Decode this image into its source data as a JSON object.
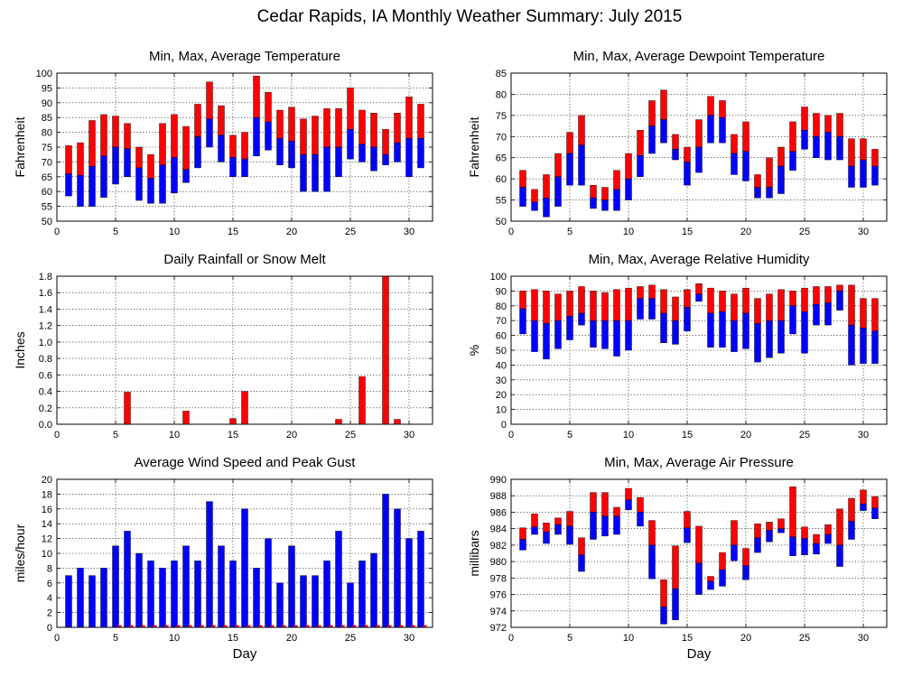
{
  "figure_title": "Cedar Rapids, IA Monthly Weather Summary: July 2015",
  "colors": {
    "high": "#ff0000",
    "low": "#0000ff",
    "axis": "#000000",
    "grid": "#000000"
  },
  "chart_data": [
    {
      "id": "temperature",
      "type": "bar",
      "style": "floating-range",
      "title": "Min, Max, Average Temperature",
      "xlabel": "",
      "ylabel": "Fahrenheit",
      "xlim": [
        0,
        32
      ],
      "ylim": [
        50,
        100
      ],
      "xticks": [
        0,
        5,
        10,
        15,
        20,
        25,
        30
      ],
      "yticks": [
        50,
        55,
        60,
        65,
        70,
        75,
        80,
        85,
        90,
        95,
        100
      ],
      "grid": true,
      "x": [
        1,
        2,
        3,
        4,
        5,
        6,
        7,
        8,
        9,
        10,
        11,
        12,
        13,
        14,
        15,
        16,
        17,
        18,
        19,
        20,
        21,
        22,
        23,
        24,
        25,
        26,
        27,
        28,
        29,
        30,
        31
      ],
      "min": [
        58.5,
        55,
        55,
        58,
        62.5,
        65,
        57,
        56,
        56,
        59.5,
        63,
        68,
        75,
        70,
        65,
        65,
        72,
        74,
        69,
        68,
        60,
        60,
        60,
        65,
        71,
        70,
        67,
        69,
        70,
        65,
        68
      ],
      "avg": [
        66,
        65.5,
        68.5,
        72,
        75,
        74.5,
        68,
        64.5,
        69,
        71.5,
        67.5,
        78.5,
        84.5,
        79,
        71.5,
        71,
        85,
        83.5,
        78,
        77,
        72.5,
        72.5,
        75,
        75,
        81,
        76,
        75,
        72.5,
        76.5,
        78,
        78
      ],
      "max": [
        75.5,
        76.5,
        84,
        86,
        85.5,
        83,
        75,
        72.5,
        83,
        86,
        82,
        89.5,
        97,
        89,
        79,
        80,
        99,
        93.5,
        87.5,
        88.5,
        84.5,
        85.5,
        88,
        88,
        95,
        87.5,
        86.5,
        81,
        86.5,
        92,
        89.5
      ]
    },
    {
      "id": "dewpoint",
      "type": "bar",
      "style": "floating-range",
      "title": "Min, Max, Average Dewpoint Temperature",
      "xlabel": "",
      "ylabel": "Fahrenheit",
      "xlim": [
        0,
        32
      ],
      "ylim": [
        50,
        85
      ],
      "xticks": [
        0,
        5,
        10,
        15,
        20,
        25,
        30
      ],
      "yticks": [
        50,
        55,
        60,
        65,
        70,
        75,
        80,
        85
      ],
      "grid": true,
      "x": [
        1,
        2,
        3,
        4,
        5,
        6,
        7,
        8,
        9,
        10,
        11,
        12,
        13,
        14,
        15,
        16,
        17,
        18,
        19,
        20,
        21,
        22,
        23,
        24,
        25,
        26,
        27,
        28,
        29,
        30,
        31
      ],
      "min": [
        53.5,
        52.5,
        51,
        53.5,
        58.5,
        58.5,
        53,
        52.5,
        52.5,
        55,
        60.5,
        66,
        68.5,
        64.5,
        58.5,
        61.5,
        68.5,
        68.5,
        61,
        59.5,
        55.5,
        55.5,
        56.5,
        62,
        67,
        65,
        64.5,
        64.5,
        58,
        58,
        58.5
      ],
      "avg": [
        58,
        54.5,
        55.5,
        60.5,
        66,
        68,
        55.5,
        55,
        57.5,
        60,
        65.5,
        72.5,
        74,
        67,
        64,
        67.5,
        75,
        74.5,
        66,
        66.5,
        58,
        58,
        63,
        66.5,
        71.5,
        70,
        71,
        70,
        63,
        64.5,
        63
      ],
      "max": [
        62,
        57.5,
        61,
        66,
        71,
        75,
        58.5,
        58,
        62,
        66,
        71.5,
        78.5,
        81,
        70.5,
        67.5,
        74,
        79.5,
        78.5,
        70.5,
        73.5,
        61,
        65,
        67.5,
        73.5,
        77,
        75.5,
        75,
        75.5,
        69.5,
        69.5,
        67
      ]
    },
    {
      "id": "rainfall",
      "type": "bar",
      "style": "value",
      "title": "Daily Rainfall or Snow Melt",
      "xlabel": "",
      "ylabel": "Inches",
      "xlim": [
        0,
        32
      ],
      "ylim": [
        0,
        1.8
      ],
      "xticks": [
        0,
        5,
        10,
        15,
        20,
        25,
        30
      ],
      "yticks": [
        "0.0",
        "0.2",
        "0.4",
        "0.6",
        "0.8",
        "1.0",
        "1.2",
        "1.4",
        "1.6",
        "1.8"
      ],
      "grid": true,
      "x": [
        1,
        2,
        3,
        4,
        5,
        6,
        7,
        8,
        9,
        10,
        11,
        12,
        13,
        14,
        15,
        16,
        17,
        18,
        19,
        20,
        21,
        22,
        23,
        24,
        25,
        26,
        27,
        28,
        29,
        30,
        31
      ],
      "values": [
        0,
        0,
        0,
        0,
        0,
        0.39,
        0,
        0,
        0,
        0,
        0.16,
        0,
        0,
        0,
        0.07,
        0.4,
        0,
        0,
        0,
        0,
        0,
        0,
        0,
        0.06,
        0,
        0.58,
        0,
        1.8,
        0.06,
        0,
        0
      ]
    },
    {
      "id": "humidity",
      "type": "bar",
      "style": "floating-range",
      "title": "Min, Max, Average Relative Humidity",
      "xlabel": "",
      "ylabel": "%",
      "xlim": [
        0,
        32
      ],
      "ylim": [
        0,
        100
      ],
      "xticks": [
        0,
        5,
        10,
        15,
        20,
        25,
        30
      ],
      "yticks": [
        0,
        10,
        20,
        30,
        40,
        50,
        60,
        70,
        80,
        90,
        100
      ],
      "grid": true,
      "x": [
        1,
        2,
        3,
        4,
        5,
        6,
        7,
        8,
        9,
        10,
        11,
        12,
        13,
        14,
        15,
        16,
        17,
        18,
        19,
        20,
        21,
        22,
        23,
        24,
        25,
        26,
        27,
        28,
        29,
        30,
        31
      ],
      "min": [
        61,
        49,
        44,
        51,
        57,
        67,
        52,
        51,
        46,
        50,
        71,
        71,
        55,
        54,
        63,
        83,
        52,
        52,
        49,
        51,
        42,
        45,
        48,
        61,
        48,
        67,
        67,
        77,
        40,
        41,
        41
      ],
      "avg": [
        78,
        70,
        68,
        70,
        73,
        75,
        70,
        70,
        70,
        70,
        85,
        85,
        75,
        70,
        79,
        88,
        75,
        76,
        70,
        75,
        68,
        70,
        70,
        80,
        76,
        81,
        82,
        90,
        67,
        65,
        63
      ],
      "max": [
        90,
        91,
        90,
        88,
        90,
        93,
        90,
        89,
        91,
        92,
        93,
        94,
        91,
        86,
        91,
        95,
        92,
        90,
        88,
        92,
        85,
        88,
        91,
        90,
        92,
        93,
        93,
        94,
        94,
        85,
        85
      ]
    },
    {
      "id": "wind",
      "type": "bar",
      "style": "value",
      "title": "Average Wind Speed and Peak Gust",
      "xlabel": "Day",
      "ylabel": "miles/hour",
      "xlim": [
        0,
        32
      ],
      "ylim": [
        0,
        20
      ],
      "xticks": [
        0,
        5,
        10,
        15,
        20,
        25,
        30
      ],
      "yticks": [
        0,
        2,
        4,
        6,
        8,
        10,
        12,
        14,
        16,
        18,
        20
      ],
      "grid": true,
      "x": [
        1,
        2,
        3,
        4,
        5,
        6,
        7,
        8,
        9,
        10,
        11,
        12,
        13,
        14,
        15,
        16,
        17,
        18,
        19,
        20,
        21,
        22,
        23,
        24,
        25,
        26,
        27,
        28,
        29,
        30,
        31
      ],
      "values": [
        7,
        8,
        7,
        8,
        11,
        13,
        10,
        9,
        8,
        9,
        11,
        9,
        17,
        11,
        9,
        16,
        8,
        12,
        6,
        11,
        7,
        7,
        9,
        13,
        6,
        9,
        10,
        18,
        16,
        12,
        13
      ],
      "gust": [
        0,
        0,
        0,
        0,
        0.3,
        0.3,
        0.3,
        0.3,
        0.3,
        0.3,
        0.3,
        0.3,
        0.3,
        0.3,
        0.3,
        0.3,
        0.3,
        0.3,
        0.3,
        0.3,
        0.3,
        0.3,
        0.3,
        0.3,
        0.3,
        0.3,
        0.3,
        0.3,
        0.3,
        0.3,
        0.3
      ]
    },
    {
      "id": "pressure",
      "type": "bar",
      "style": "floating-range",
      "title": "Min, Max, Average Air Pressure",
      "xlabel": "Day",
      "ylabel": "millibars",
      "xlim": [
        0,
        32
      ],
      "ylim": [
        972,
        990
      ],
      "xticks": [
        0,
        5,
        10,
        15,
        20,
        25,
        30
      ],
      "yticks": [
        972,
        974,
        976,
        978,
        980,
        982,
        984,
        986,
        988,
        990
      ],
      "grid": true,
      "x": [
        1,
        2,
        3,
        4,
        5,
        6,
        7,
        8,
        9,
        10,
        11,
        12,
        13,
        14,
        15,
        16,
        17,
        18,
        19,
        20,
        21,
        22,
        23,
        24,
        25,
        26,
        27,
        28,
        29,
        30,
        31
      ],
      "min": [
        981.4,
        983.3,
        982.2,
        983.3,
        982.1,
        978.8,
        982.7,
        983.1,
        983.3,
        986.3,
        984.3,
        977.9,
        972.4,
        972.9,
        982.3,
        976,
        976.6,
        977,
        980.1,
        977.8,
        981.1,
        982.4,
        983.5,
        980.7,
        980.8,
        980.9,
        982.2,
        979.4,
        982.7,
        986.2,
        985.2
      ],
      "avg": [
        982.7,
        984.2,
        983.6,
        984.5,
        984.3,
        980.8,
        986,
        985.5,
        985.5,
        987.5,
        986,
        982,
        974.5,
        976.7,
        984.1,
        979.8,
        977.6,
        979,
        982,
        979.5,
        982.9,
        983.8,
        984,
        983,
        982.8,
        982.2,
        983.3,
        982,
        984.9,
        987,
        986.5
      ],
      "max": [
        984.1,
        985.8,
        984.7,
        985.3,
        986.1,
        982.9,
        988.4,
        988.4,
        986.6,
        988.9,
        987.8,
        985,
        977.8,
        981.9,
        986.1,
        984.3,
        978.2,
        981.1,
        985,
        981.6,
        984.6,
        984.8,
        985.2,
        989.1,
        984.2,
        983.3,
        984.5,
        986.4,
        987.7,
        988.7,
        987.9
      ]
    }
  ]
}
